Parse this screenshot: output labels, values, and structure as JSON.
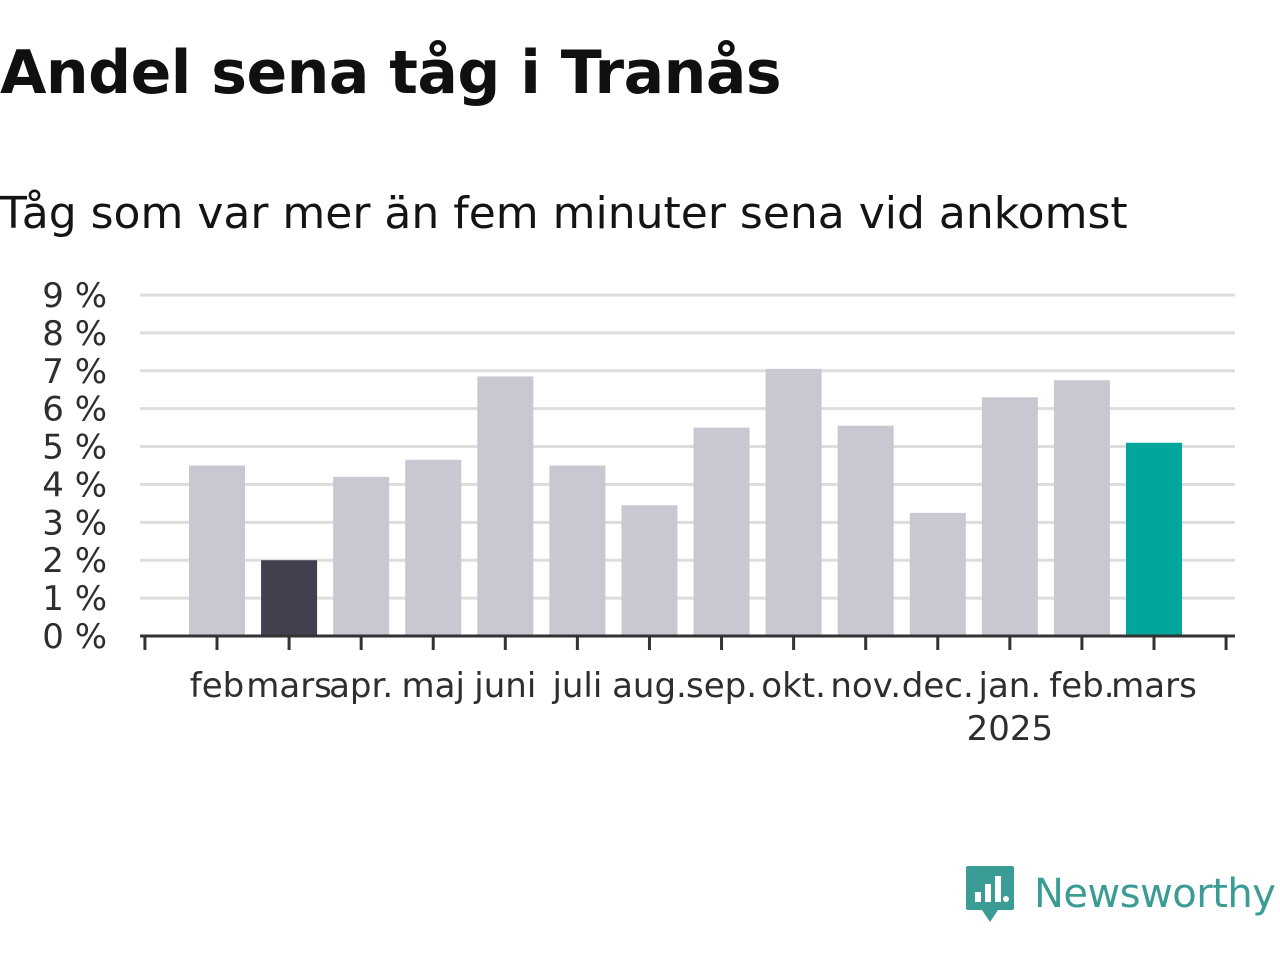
{
  "title": "Andel sena tåg i Tranås",
  "subtitle": "Tåg som var mer än fem minuter sena vid ankomst",
  "brand": {
    "name": "Newsworthy",
    "icon": "newsworthy-logo-icon"
  },
  "colors": {
    "default_bar": "#c8c7d2",
    "highlight_previous_year": "#42404e",
    "highlight_current": "#00a59b",
    "gridline": "#dddddd",
    "axis": "#333333",
    "brand": "#3a9c95"
  },
  "chart_data": {
    "type": "bar",
    "categories": [
      "feb",
      "mars",
      "apr.",
      "maj",
      "juni",
      "juli",
      "aug.",
      "sep.",
      "okt.",
      "nov.",
      "dec.",
      "jan.",
      "feb.",
      "mars"
    ],
    "year_label": {
      "text": "2025",
      "under_category_index": 11
    },
    "values": [
      4.5,
      2.0,
      4.2,
      4.65,
      6.85,
      4.5,
      3.45,
      5.5,
      7.05,
      5.55,
      3.25,
      6.3,
      6.75,
      5.1
    ],
    "bar_highlight": [
      "default",
      "previous_year",
      "default",
      "default",
      "default",
      "default",
      "default",
      "default",
      "default",
      "default",
      "default",
      "default",
      "default",
      "current"
    ],
    "ylim": [
      0,
      9
    ],
    "yticks": [
      0,
      1,
      2,
      3,
      4,
      5,
      6,
      7,
      8,
      9
    ],
    "ytick_labels": [
      "0 %",
      "1 %",
      "2 %",
      "3 %",
      "4 %",
      "5 %",
      "6 %",
      "7 %",
      "8 %",
      "9 %"
    ],
    "grid": true,
    "xlabel": "",
    "ylabel": ""
  }
}
